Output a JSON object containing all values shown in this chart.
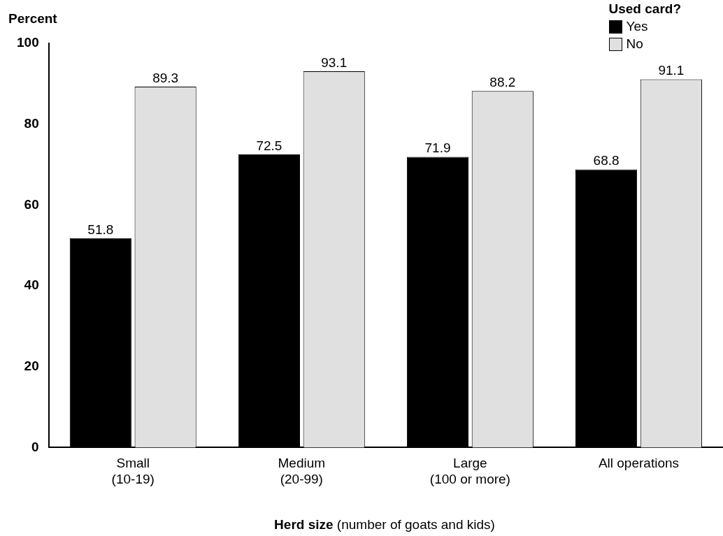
{
  "chart_data": {
    "type": "bar",
    "ylabel": "Percent",
    "xlabel": "Herd size (number of goats and kids)",
    "legend_title": "Used card?",
    "legend": "top right",
    "grid": false,
    "data_labels": true,
    "categories": [
      "Small\n(10-19)",
      "Medium\n(20-99)",
      "Large\n(100 or more)",
      "All operations"
    ],
    "ylim": [
      0,
      100
    ],
    "yticks": [
      0,
      20,
      40,
      60,
      80,
      100
    ],
    "series": [
      {
        "name": "Yes",
        "color": "#000000",
        "values": [
          51.8,
          72.5,
          71.9,
          68.8
        ]
      },
      {
        "name": "No",
        "color": "#e0e0e0",
        "values": [
          89.3,
          93.1,
          88.2,
          91.1
        ]
      }
    ]
  }
}
